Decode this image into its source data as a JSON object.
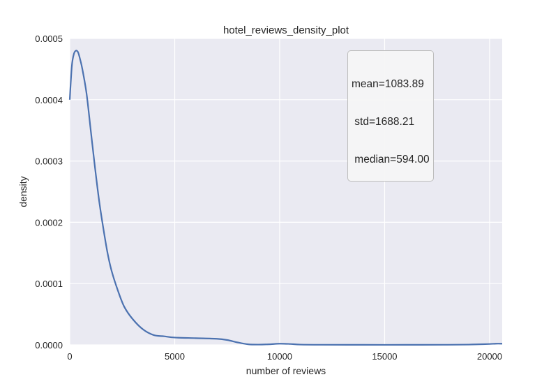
{
  "chart_data": {
    "type": "line",
    "title": "hotel_reviews_density_plot",
    "xlabel": "number of reviews",
    "ylabel": "density",
    "xlim": [
      0,
      20600
    ],
    "ylim": [
      0,
      0.0005
    ],
    "x_ticks": [
      0,
      5000,
      10000,
      15000,
      20000
    ],
    "x_tick_labels": [
      "0",
      "5000",
      "10000",
      "15000",
      "20000"
    ],
    "y_ticks": [
      0,
      0.0001,
      0.0002,
      0.0003,
      0.0004,
      0.0005
    ],
    "y_tick_labels": [
      "0.0000",
      "0.0001",
      "0.0002",
      "0.0003",
      "0.0004",
      "0.0005"
    ],
    "grid": true,
    "line_color": "#4c72b0",
    "background_color": "#eaeaf2",
    "annotation": [
      "mean=1083.89",
      " std=1688.21",
      " median=594.00"
    ],
    "series": [
      {
        "x": [
          0,
          100,
          200,
          300,
          400,
          500,
          600,
          800,
          1000,
          1200,
          1400,
          1600,
          1800,
          2000,
          2300,
          2600,
          3000,
          3500,
          4000,
          4500,
          5000,
          6000,
          7000,
          7500,
          8000,
          8500,
          9000,
          9500,
          10000,
          10500,
          11000,
          12000,
          14000,
          16000,
          18000,
          19000,
          19500,
          20000,
          20300,
          20600
        ],
        "y": [
          0.0004,
          0.000455,
          0.000475,
          0.00048,
          0.000477,
          0.000465,
          0.00045,
          0.00041,
          0.00035,
          0.00029,
          0.000235,
          0.00019,
          0.00015,
          0.00012,
          8.8e-05,
          6.2e-05,
          4.2e-05,
          2.5e-05,
          1.6e-05,
          1.4e-05,
          1.2e-05,
          1.1e-05,
          1e-05,
          8e-06,
          4e-06,
          1e-06,
          5e-07,
          1e-06,
          2e-06,
          1.5e-06,
          5e-07,
          2e-07,
          1e-07,
          1e-07,
          2e-07,
          5e-07,
          1e-06,
          1.5e-06,
          2e-06,
          2e-06
        ]
      }
    ]
  }
}
